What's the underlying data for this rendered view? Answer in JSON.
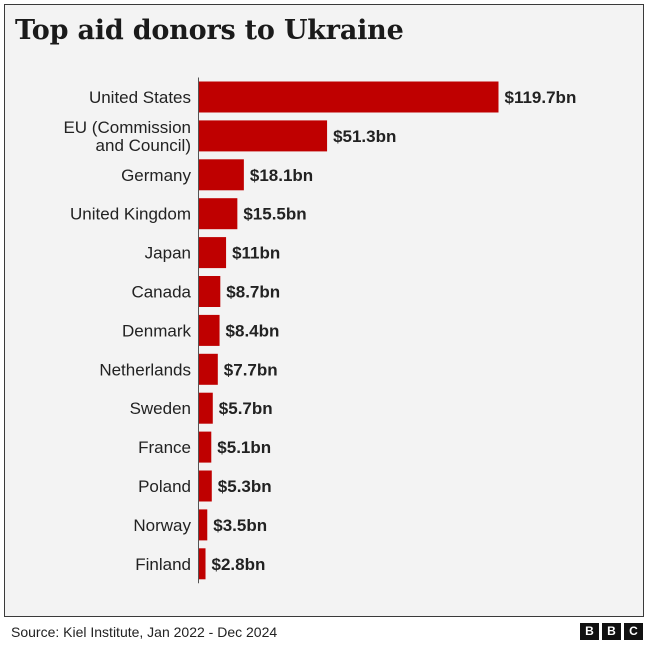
{
  "title": "Top aid donors to Ukraine",
  "source": "Source: Kiel Institute, Jan 2022 - Dec 2024",
  "logo": {
    "text": "BBC",
    "letters": [
      "B",
      "B",
      "C"
    ]
  },
  "colors": {
    "bar": "#bf0000",
    "background": "#f3f3f3",
    "text": "#222222"
  },
  "chart_data": {
    "type": "bar",
    "orientation": "horizontal",
    "categories": [
      [
        "United States"
      ],
      [
        "EU (Commission",
        "and Council)"
      ],
      [
        "Germany"
      ],
      [
        "United Kingdom"
      ],
      [
        "Japan"
      ],
      [
        "Canada"
      ],
      [
        "Denmark"
      ],
      [
        "Netherlands"
      ],
      [
        "Sweden"
      ],
      [
        "France"
      ],
      [
        "Poland"
      ],
      [
        "Norway"
      ],
      [
        "Finland"
      ]
    ],
    "values": [
      119.7,
      51.3,
      18.1,
      15.5,
      11,
      8.7,
      8.4,
      7.7,
      5.7,
      5.1,
      5.3,
      3.5,
      2.8
    ],
    "data_labels": [
      "$119.7bn",
      "$51.3bn",
      "$18.1bn",
      "$15.5bn",
      "$11bn",
      "$8.7bn",
      "$8.4bn",
      "$7.7bn",
      "$5.7bn",
      "$5.1bn",
      "$5.3bn",
      "$3.5bn",
      "$2.8bn"
    ],
    "unit": "bn",
    "xlim": [
      0,
      119.7
    ],
    "grid": false,
    "legend": "none"
  }
}
